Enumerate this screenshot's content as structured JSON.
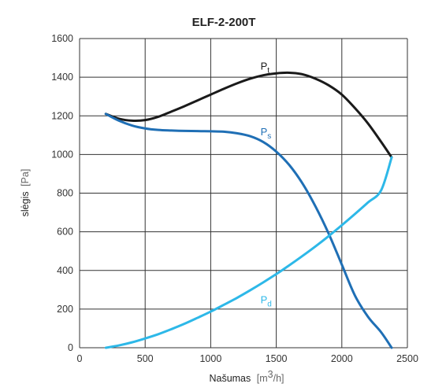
{
  "chart_data": {
    "type": "line",
    "title": "ELF-2-200T",
    "xlabel": "Našumas",
    "xlabel_unit_prefix": "m",
    "xlabel_unit_sup": "3",
    "xlabel_unit_suffix": "/h",
    "ylabel": "slėgis",
    "ylabel_unit": "Pa",
    "xlim": [
      0,
      2500
    ],
    "ylim": [
      0,
      1600
    ],
    "x_ticks": [
      "0",
      "500",
      "1000",
      "1500",
      "2000",
      "2500"
    ],
    "y_ticks": [
      "0",
      "200",
      "400",
      "600",
      "800",
      "1000",
      "1200",
      "1400",
      "1600"
    ],
    "grid": true,
    "series": [
      {
        "name": "Pt",
        "label_main": "P",
        "label_sub": "t",
        "color": "#1a1a1a",
        "x": [
          200,
          300,
          400,
          500,
          600,
          700,
          800,
          900,
          1000,
          1100,
          1200,
          1300,
          1400,
          1500,
          1600,
          1700,
          1800,
          1900,
          2000,
          2100,
          2200,
          2300,
          2380
        ],
        "y": [
          1210,
          1185,
          1175,
          1178,
          1195,
          1222,
          1250,
          1280,
          1310,
          1340,
          1368,
          1392,
          1410,
          1420,
          1423,
          1415,
          1392,
          1358,
          1310,
          1240,
          1160,
          1065,
          985
        ]
      },
      {
        "name": "Ps",
        "label_main": "P",
        "label_sub": "s",
        "color": "#1f6fb5",
        "x": [
          200,
          300,
          400,
          500,
          600,
          700,
          800,
          900,
          1000,
          1100,
          1200,
          1300,
          1400,
          1500,
          1600,
          1700,
          1800,
          1900,
          2000,
          2100,
          2200,
          2300,
          2380
        ],
        "y": [
          1210,
          1175,
          1150,
          1135,
          1127,
          1124,
          1122,
          1121,
          1120,
          1118,
          1110,
          1095,
          1065,
          1015,
          945,
          850,
          730,
          590,
          430,
          270,
          160,
          80,
          0
        ]
      },
      {
        "name": "Pd",
        "label_main": "P",
        "label_sub": "d",
        "color": "#2db8e8",
        "x": [
          200,
          300,
          400,
          500,
          600,
          700,
          800,
          900,
          1000,
          1100,
          1200,
          1300,
          1400,
          1500,
          1600,
          1700,
          1800,
          1900,
          2000,
          2100,
          2200,
          2300,
          2380
        ],
        "y": [
          0,
          12,
          28,
          48,
          70,
          96,
          124,
          155,
          187,
          222,
          258,
          297,
          338,
          381,
          427,
          475,
          525,
          578,
          634,
          692,
          752,
          815,
          985
        ]
      }
    ]
  }
}
